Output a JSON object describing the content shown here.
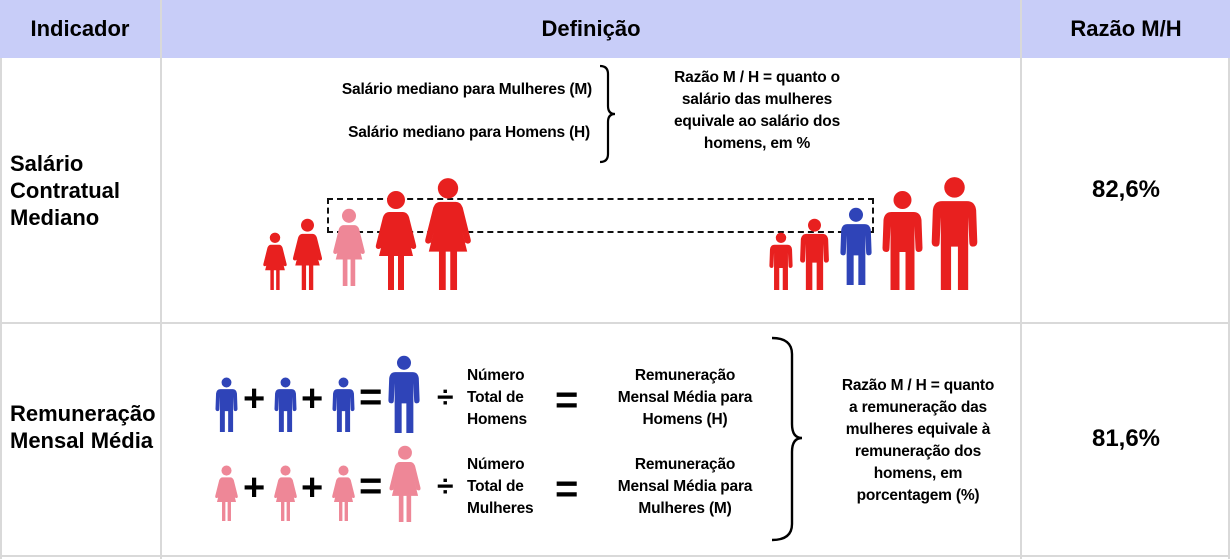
{
  "header": {
    "col1": "Indicador",
    "col2": "Definição",
    "col3": "Razão M/H"
  },
  "colors": {
    "header_bg": "#c8cdf8",
    "red": "#e8201f",
    "pink": "#ee8797",
    "blue": "#2f44b8"
  },
  "rows": [
    {
      "indicator": "Salário Contratual Mediano",
      "indicator_lines": [
        "Salário",
        "Contratual",
        "Mediano"
      ],
      "definition": {
        "women_label": "Salário mediano para Mulheres (M)",
        "men_label": "Salário mediano para Homens (H)",
        "explanation_lines": [
          "Razão M / H = quanto o",
          "salário das mulheres",
          "equivale ao salário dos",
          "homens, em %"
        ]
      },
      "ratio": "82,6%"
    },
    {
      "indicator": "Remuneração Mensal Média",
      "indicator_lines": [
        "Remuneração",
        "Mensal Média"
      ],
      "definition": {
        "men_count_lines": [
          "Número",
          "Total de",
          "Homens"
        ],
        "men_result_lines": [
          "Remuneração",
          "Mensal Média para",
          "Homens (H)"
        ],
        "women_count_lines": [
          "Número",
          "Total de",
          "Mulheres"
        ],
        "women_result_lines": [
          "Remuneração",
          "Mensal Média para",
          "Mulheres (M)"
        ],
        "explanation_lines": [
          "Razão M / H = quanto",
          "a remuneração das",
          "mulheres equivale à",
          "remuneração dos",
          "homens, em",
          "porcentagem (%)"
        ],
        "plus": "+",
        "equals": "=",
        "divide": "÷"
      },
      "ratio": "81,6%"
    }
  ]
}
